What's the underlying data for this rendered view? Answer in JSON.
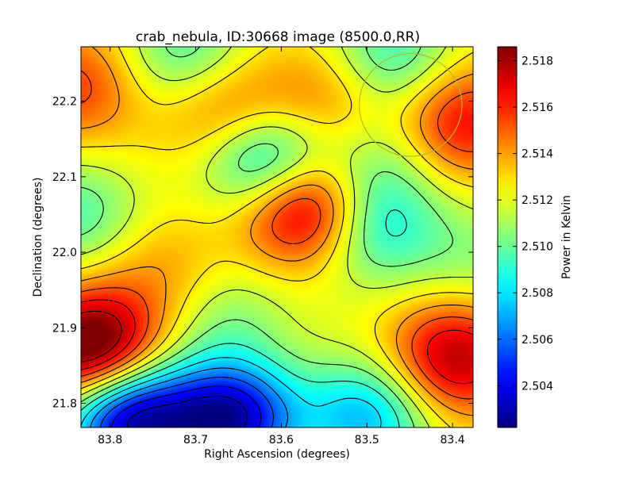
{
  "chart_data": {
    "type": "heatmap",
    "title": "crab_nebula, ID:30668 image (8500.0,RR)",
    "xlabel": "Right Ascension (degrees)",
    "ylabel": "Declination (degrees)",
    "xlim": [
      83.834,
      83.376
    ],
    "ylim": [
      21.768,
      22.272
    ],
    "x_ticks": [
      83.8,
      83.7,
      83.6,
      83.5,
      83.4
    ],
    "x_tick_labels": [
      "83.8",
      "83.7",
      "83.6",
      "83.5",
      "83.4"
    ],
    "y_ticks": [
      21.8,
      21.9,
      22.0,
      22.1,
      22.2
    ],
    "y_tick_labels": [
      "21.8",
      "21.9",
      "22.0",
      "22.1",
      "22.2"
    ],
    "colorbar": {
      "label": "Power in Kelvin",
      "range": [
        2.5022,
        2.5186
      ],
      "ticks": [
        2.504,
        2.506,
        2.508,
        2.51,
        2.512,
        2.514,
        2.516,
        2.518
      ],
      "tick_labels": [
        "2.504",
        "2.506",
        "2.508",
        "2.510",
        "2.512",
        "2.514",
        "2.516",
        "2.518"
      ]
    },
    "colormap": "jet",
    "background_value": 2.5125,
    "features": [
      {
        "ra": 83.82,
        "dec": 21.87,
        "value": 2.5186,
        "kind": "max"
      },
      {
        "ra": 83.4,
        "dec": 21.86,
        "value": 2.5175,
        "kind": "max"
      },
      {
        "ra": 83.39,
        "dec": 22.175,
        "value": 2.5162,
        "kind": "max"
      },
      {
        "ra": 83.84,
        "dec": 22.22,
        "value": 2.5155,
        "kind": "max"
      },
      {
        "ra": 83.57,
        "dec": 22.065,
        "value": 2.5155,
        "kind": "max"
      },
      {
        "ra": 83.55,
        "dec": 22.195,
        "value": 2.5135,
        "kind": "max"
      },
      {
        "ra": 83.665,
        "dec": 22.19,
        "value": 2.5135,
        "kind": "max"
      },
      {
        "ra": 83.74,
        "dec": 21.975,
        "value": 2.514,
        "kind": "max"
      },
      {
        "ra": 83.66,
        "dec": 21.78,
        "value": 2.5022,
        "kind": "min"
      },
      {
        "ra": 83.78,
        "dec": 21.782,
        "value": 2.5035,
        "kind": "min"
      },
      {
        "ra": 83.5,
        "dec": 21.783,
        "value": 2.5075,
        "kind": "min"
      },
      {
        "ra": 83.84,
        "dec": 22.05,
        "value": 2.5098,
        "kind": "min"
      },
      {
        "ra": 83.61,
        "dec": 22.12,
        "value": 2.5104,
        "kind": "min"
      },
      {
        "ra": 83.47,
        "dec": 22.258,
        "value": 2.5099,
        "kind": "min"
      },
      {
        "ra": 83.5,
        "dec": 22.035,
        "value": 2.5102,
        "kind": "min"
      },
      {
        "ra": 83.71,
        "dec": 22.26,
        "value": 2.5104,
        "kind": "min"
      },
      {
        "ra": 83.665,
        "dec": 21.915,
        "value": 2.5106,
        "kind": "min"
      },
      {
        "ra": 83.375,
        "dec": 21.995,
        "value": 2.5108,
        "kind": "min"
      },
      {
        "ra": 83.495,
        "dec": 22.115,
        "value": 2.5108,
        "kind": "min"
      }
    ],
    "contour_levels": [
      2.5032,
      2.5044,
      2.5056,
      2.5068,
      2.508,
      2.5092,
      2.5104,
      2.5116,
      2.5128,
      2.514,
      2.5152,
      2.5164,
      2.5176
    ],
    "beam_circle": {
      "ra": 83.449,
      "dec": 22.195,
      "radius_deg": 0.06,
      "color": "#b5b820"
    },
    "colors": {
      "contour": "#000000",
      "axes": "#000000",
      "beam": "#b5b820"
    }
  }
}
